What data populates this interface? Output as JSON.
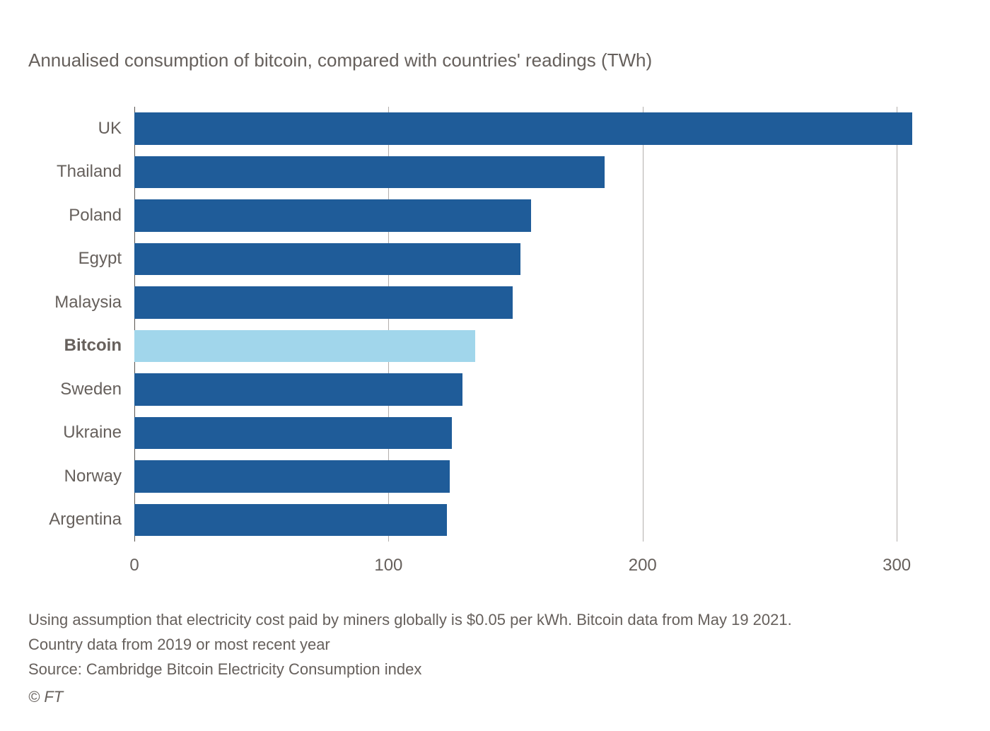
{
  "chart": {
    "type": "bar-horizontal",
    "subtitle": "Annualised consumption of bitcoin, compared with countries' readings (TWh)",
    "categories": [
      "UK",
      "Thailand",
      "Poland",
      "Egypt",
      "Malaysia",
      "Bitcoin",
      "Sweden",
      "Ukraine",
      "Norway",
      "Argentina"
    ],
    "values": [
      306,
      185,
      156,
      152,
      149,
      134,
      129,
      125,
      124,
      123
    ],
    "highlight_index": 5,
    "bar_color": "#1f5c99",
    "highlight_color": "#a1d6eb",
    "label_color": "#66605c",
    "label_fontsize": 24,
    "subtitle_fontsize": 26,
    "subtitle_color": "#66605c",
    "xlim": [
      0,
      320
    ],
    "xtick_positions": [
      0,
      100,
      200,
      300
    ],
    "xtick_labels": [
      "0",
      "100",
      "200",
      "300"
    ],
    "grid_color": "#b3afad",
    "baseline_color": "#585450",
    "background_color": "#ffffff",
    "bar_height_ratio": 0.74
  },
  "footer": {
    "note_line1": "Using assumption that electricity cost paid by miners globally is $0.05 per kWh. Bitcoin data from May 19 2021.",
    "note_line2": "Country data from 2019 or most recent year",
    "source": "Source: Cambridge Bitcoin Electricity Consumption index",
    "copyright": "© FT",
    "text_color": "#66605c",
    "fontsize": 22
  }
}
